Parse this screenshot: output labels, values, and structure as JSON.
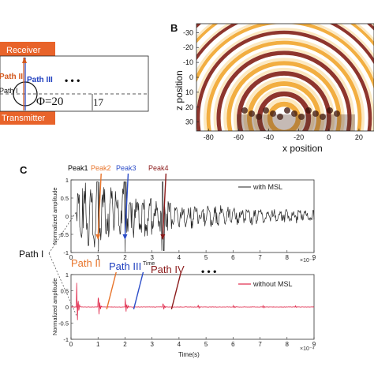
{
  "panel_a": {
    "receiver_label": "Receiver",
    "transmitter_label": "Transmitter",
    "path_labels": [
      "Path I",
      "Path II",
      "Path III"
    ],
    "ellipsis": "• • •",
    "phi_label": "Φ=20",
    "dim_label": "17",
    "colors": {
      "block": "#e8632a",
      "path2": "#d2581e",
      "path3": "#1f3fbf"
    }
  },
  "panel_b": {
    "letter": "B",
    "xlabel": "x position",
    "ylabel": "z position",
    "xticks": [
      "-80",
      "-60",
      "-40",
      "-20",
      "0",
      "20"
    ],
    "yticks": [
      "-30",
      "-20",
      "-10",
      "0",
      "10",
      "20",
      "30"
    ],
    "colors": {
      "dark": "#7a1208",
      "mid": "#f0a020",
      "light": "#ffffff"
    }
  },
  "panel_c": {
    "letter": "C",
    "peak_labels": [
      {
        "text": "Peak1",
        "color": "#000000"
      },
      {
        "text": "Peak2",
        "color": "#e8742a"
      },
      {
        "text": "Peak3",
        "color": "#2b4cc8"
      },
      {
        "text": "Peak4",
        "color": "#8b1a1a"
      }
    ],
    "path_labels": [
      {
        "text": "Path I",
        "color": "#000000"
      },
      {
        "text": "Path II",
        "color": "#e8742a"
      },
      {
        "text": "Path III",
        "color": "#1f3fbf"
      },
      {
        "text": "Path IV",
        "color": "#8b1a1a"
      }
    ],
    "ellipsis": "• • •",
    "exp_label": "×10⁻⁴",
    "x_scale": "×10^-4",
    "top_plot": {
      "ylabel": "Normalized amplitude",
      "xlabel": "Time",
      "legend": "with MSL",
      "color": "#222222"
    },
    "bottom_plot": {
      "ylabel": "Normalized amplitude",
      "xlabel": "Time(s)",
      "legend": "without MSL",
      "color": "#e0284a"
    }
  },
  "chart_data": [
    {
      "type": "line",
      "title": "",
      "xlabel": "Time",
      "ylabel": "Normalized amplitude",
      "xlim": [
        0,
        9
      ],
      "ylim": [
        -1,
        1
      ],
      "xticks": [
        "0",
        "1",
        "2",
        "3",
        "4",
        "5",
        "6",
        "7",
        "8",
        "9"
      ],
      "yticks": [
        "-1",
        "-0.5",
        "0",
        "0.5",
        "1"
      ],
      "legend": "top-right",
      "series": [
        {
          "name": "with MSL",
          "peaks": [
            1.0,
            2.0,
            3.4
          ],
          "envelope_start": 0.0,
          "envelope_values": [
            0.95,
            0.9,
            0.65,
            0.45,
            0.35,
            0.3,
            0.25,
            0.2,
            0.2
          ]
        }
      ]
    },
    {
      "type": "line",
      "title": "",
      "xlabel": "Time(s)",
      "ylabel": "Normalized amplitude",
      "xlim": [
        0,
        9
      ],
      "ylim": [
        -1,
        1
      ],
      "xticks": [
        "0",
        "1",
        "2",
        "3",
        "4",
        "5",
        "6",
        "7",
        "8",
        "9"
      ],
      "yticks": [
        "-1",
        "-0.5",
        "0",
        "0.5",
        "1"
      ],
      "legend": "top-right",
      "series": [
        {
          "name": "without MSL",
          "pulses": [
            {
              "t": 0.2,
              "amp": 1.0
            },
            {
              "t": 1.0,
              "amp": 0.55
            },
            {
              "t": 2.0,
              "amp": 0.35
            },
            {
              "t": 3.4,
              "amp": 0.18
            },
            {
              "t": 4.7,
              "amp": 0.08
            },
            {
              "t": 6.0,
              "amp": 0.06
            },
            {
              "t": 7.1,
              "amp": 0.05
            },
            {
              "t": 8.3,
              "amp": 0.04
            }
          ]
        }
      ]
    }
  ]
}
